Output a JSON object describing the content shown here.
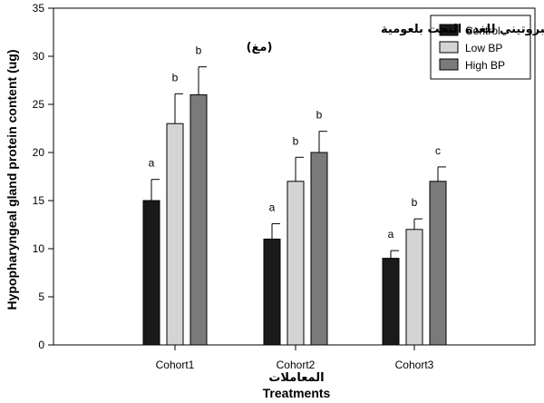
{
  "chart_data": {
    "type": "bar",
    "title_ar": "المحتوى البروتيني للغدة التحت بلعومية",
    "title_ar_unit": "(مغ)",
    "ylabel": "Hypopharyngeal gland protein content (ug)",
    "xlabel": "Treatments",
    "xlabel_ar": "المعاملات",
    "ylim": [
      0,
      35
    ],
    "yticks": [
      0,
      5,
      10,
      15,
      20,
      25,
      30,
      35
    ],
    "categories": [
      "Cohort1",
      "Cohort2",
      "Cohort3"
    ],
    "legend_position": "top-right",
    "series": [
      {
        "name": "Control",
        "color": "#1a1a1a",
        "values": [
          15,
          11,
          9
        ],
        "errors": [
          2.2,
          1.6,
          0.8
        ],
        "letters": [
          "a",
          "a",
          "a"
        ]
      },
      {
        "name": "Low BP",
        "color": "#d4d4d4",
        "values": [
          23,
          17,
          12
        ],
        "errors": [
          3.1,
          2.5,
          1.1
        ],
        "letters": [
          "b",
          "b",
          "b"
        ]
      },
      {
        "name": "High BP",
        "color": "#7a7a7a",
        "values": [
          26,
          20,
          17
        ],
        "errors": [
          2.9,
          2.2,
          1.5
        ],
        "letters": [
          "b",
          "b",
          "c"
        ]
      }
    ]
  }
}
